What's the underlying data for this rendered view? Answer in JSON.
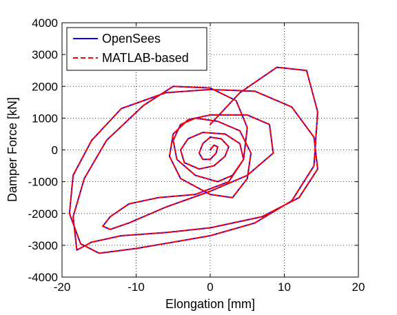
{
  "chart_data": {
    "type": "line",
    "title": "",
    "xlabel": "Elongation [mm]",
    "ylabel": "Damper Force [kN]",
    "xlim": [
      -20,
      20
    ],
    "ylim": [
      -4000,
      4000
    ],
    "x_ticks": [
      -20,
      -10,
      0,
      10,
      20
    ],
    "y_ticks": [
      -4000,
      -3000,
      -2000,
      -1000,
      0,
      1000,
      2000,
      3000,
      4000
    ],
    "x_tick_labels": [
      "-20",
      "-10",
      "0",
      "10",
      "20"
    ],
    "y_tick_labels": [
      "-4000",
      "-3000",
      "-2000",
      "-1000",
      "0",
      "1000",
      "2000",
      "3000",
      "4000"
    ],
    "grid": true,
    "legend_position": "top-left",
    "series": [
      {
        "name": "OpenSees",
        "color": "#0000ff",
        "style": "solid",
        "x": [
          0,
          4,
          9,
          13,
          14.5,
          14,
          11,
          6,
          0,
          -5,
          -10,
          -15,
          -17.5,
          -19,
          -18.5,
          -16,
          -12,
          -6,
          0,
          6,
          11,
          14,
          14.5,
          12,
          7,
          0,
          -6,
          -12,
          -16,
          -18,
          -18.5,
          -17,
          -14,
          -9,
          -5,
          0,
          3.5,
          5,
          4.5,
          2.5,
          -2,
          -7,
          -11,
          -13.5,
          -14.5,
          -13.5,
          -11,
          -6,
          0,
          5,
          8.5,
          8,
          5,
          0,
          -3,
          -5,
          -5.5,
          -4,
          0,
          3,
          5,
          5.5,
          4,
          1,
          -2,
          -4,
          -5,
          -4.5,
          -2,
          1,
          3,
          4.5,
          4,
          2,
          -1,
          -3,
          -4,
          -3.5,
          -1.5,
          0.5,
          2,
          2.5,
          1.5,
          0,
          -1,
          -1.5,
          -1,
          0,
          0.8,
          1,
          0.5,
          0
        ],
        "y": [
          800,
          1800,
          2600,
          2500,
          1200,
          -500,
          -1600,
          -2300,
          -2700,
          -2900,
          -3100,
          -3250,
          -2950,
          -2000,
          -800,
          300,
          1300,
          1800,
          1900,
          1850,
          1350,
          400,
          -600,
          -1500,
          -2100,
          -2450,
          -2600,
          -2700,
          -2900,
          -3150,
          -2100,
          -900,
          300,
          1400,
          2000,
          1950,
          1550,
          700,
          -300,
          -1000,
          -1400,
          -1500,
          -1700,
          -2100,
          -2400,
          -2500,
          -2300,
          -1800,
          -1300,
          -800,
          -100,
          800,
          1100,
          1100,
          950,
          500,
          -200,
          -900,
          -1400,
          -1500,
          -900,
          -100,
          600,
          900,
          1000,
          800,
          300,
          -300,
          -800,
          -1000,
          -800,
          -300,
          200,
          500,
          550,
          350,
          0,
          -400,
          -600,
          -500,
          -200,
          100,
          350,
          400,
          200,
          -100,
          -300,
          -300,
          -100,
          100,
          150,
          0
        ]
      },
      {
        "name": "MATLAB-based",
        "color": "#ff0000",
        "style": "dashed",
        "x": [
          0,
          4,
          9,
          13,
          14.5,
          14,
          11,
          6,
          0,
          -5,
          -10,
          -15,
          -17.5,
          -19,
          -18.5,
          -16,
          -12,
          -6,
          0,
          6,
          11,
          14,
          14.5,
          12,
          7,
          0,
          -6,
          -12,
          -16,
          -18,
          -18.5,
          -17,
          -14,
          -9,
          -5,
          0,
          3.5,
          5,
          4.5,
          2.5,
          -2,
          -7,
          -11,
          -13.5,
          -14.5,
          -13.5,
          -11,
          -6,
          0,
          5,
          8.5,
          8,
          5,
          0,
          -3,
          -5,
          -5.5,
          -4,
          0,
          3,
          5,
          5.5,
          4,
          1,
          -2,
          -4,
          -5,
          -4.5,
          -2,
          1,
          3,
          4.5,
          4,
          2,
          -1,
          -3,
          -4,
          -3.5,
          -1.5,
          0.5,
          2,
          2.5,
          1.5,
          0,
          -1,
          -1.5,
          -1,
          0,
          0.8,
          1,
          0.5,
          0
        ],
        "y": [
          800,
          1800,
          2600,
          2500,
          1200,
          -500,
          -1600,
          -2300,
          -2700,
          -2900,
          -3100,
          -3250,
          -2950,
          -2000,
          -800,
          300,
          1300,
          1800,
          1900,
          1850,
          1350,
          400,
          -600,
          -1500,
          -2100,
          -2450,
          -2600,
          -2700,
          -2900,
          -3150,
          -2100,
          -900,
          300,
          1400,
          2000,
          1950,
          1550,
          700,
          -300,
          -1000,
          -1400,
          -1500,
          -1700,
          -2100,
          -2400,
          -2500,
          -2300,
          -1800,
          -1300,
          -800,
          -100,
          800,
          1100,
          1100,
          950,
          500,
          -200,
          -900,
          -1400,
          -1500,
          -900,
          -100,
          600,
          900,
          1000,
          800,
          300,
          -300,
          -800,
          -1000,
          -800,
          -300,
          200,
          500,
          550,
          350,
          0,
          -400,
          -600,
          -500,
          -200,
          100,
          350,
          400,
          200,
          -100,
          -300,
          -300,
          -100,
          100,
          150,
          0
        ]
      }
    ]
  }
}
